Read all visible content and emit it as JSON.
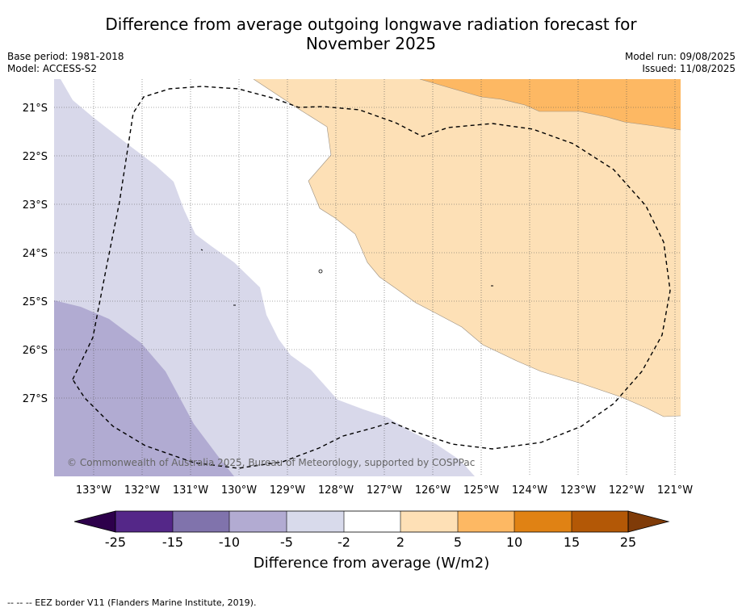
{
  "header": {
    "title_line1": "Difference from average outgoing longwave radiation forecast for",
    "title_line2": "November 2025",
    "base_period": "Base period: 1981-2018",
    "model": "Model: ACCESS-S2",
    "model_run": "Model run: 09/08/2025",
    "issued": "Issued: 11/08/2025"
  },
  "map": {
    "lat_labels": [
      "21°S",
      "22°S",
      "23°S",
      "24°S",
      "25°S",
      "26°S",
      "27°S"
    ],
    "lon_labels": [
      "133°W",
      "132°W",
      "131°W",
      "130°W",
      "129°W",
      "128°W",
      "127°W",
      "126°W",
      "125°W",
      "124°W",
      "123°W",
      "122°W",
      "121°W"
    ],
    "copyright": "© Commonwealth of Australia 2025, Bureau of Meteorology, supported by COSPPac",
    "eez_line_style": "dashed black",
    "shading": [
      {
        "range": "-10 to -5",
        "color": "#b1abd2",
        "region": "southwest"
      },
      {
        "range": "-5 to -2",
        "color": "#d8d8ea",
        "region": "west"
      },
      {
        "range": "-2 to 2",
        "color": "#ffffff",
        "region": "centre"
      },
      {
        "range": "2 to 5",
        "color": "#fde0b6",
        "region": "east"
      },
      {
        "range": "5 to 10",
        "color": "#fdb863",
        "region": "northeast"
      }
    ]
  },
  "legend": {
    "title": "Difference from average (W/m2)",
    "ticks": [
      "-25",
      "-15",
      "-10",
      "-5",
      "-2",
      "2",
      "5",
      "10",
      "15",
      "25"
    ],
    "colors": [
      "#2d004b",
      "#542788",
      "#8073ac",
      "#b2abd2",
      "#d8daeb",
      "#ffffff",
      "#fee0b6",
      "#fdb863",
      "#e08214",
      "#b35806",
      "#7f3b08"
    ]
  },
  "footer": {
    "text": "--  --  -- EEZ border V11 (Flanders Marine Institute, 2019)."
  }
}
